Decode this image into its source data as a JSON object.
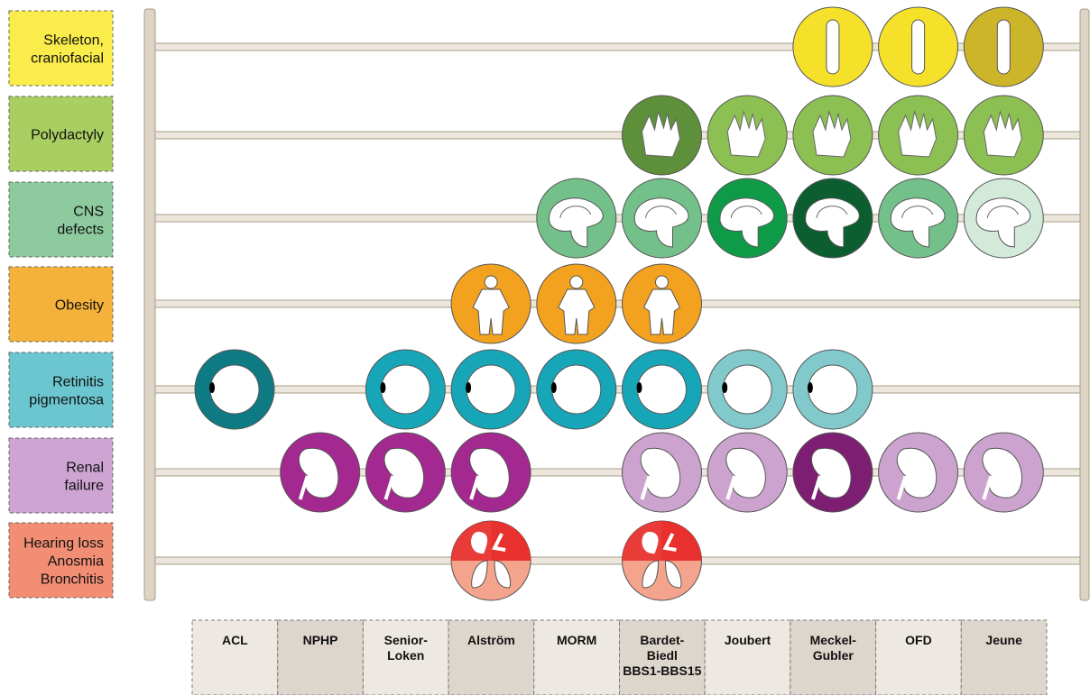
{
  "rows": [
    {
      "label": [
        "Skeleton,",
        "craniofacial"
      ],
      "color": "#f9ec4b",
      "beads": [
        null,
        null,
        null,
        null,
        null,
        null,
        null,
        "#f5e12a",
        "#f5e12a",
        "#cdb52a"
      ]
    },
    {
      "label": [
        "Polydactyly"
      ],
      "color": "#a9cf62",
      "beads": [
        null,
        null,
        null,
        null,
        null,
        "#5e8f3a",
        "#8dc053",
        "#8dc053",
        "#8dc053",
        "#8dc053"
      ]
    },
    {
      "label": [
        "CNS",
        "defects"
      ],
      "color": "#8dcb9e",
      "beads": [
        null,
        null,
        null,
        null,
        "#74c08a",
        "#74c08a",
        "#0f9a48",
        "#0c5e30",
        "#74c08a",
        "#d3eadb"
      ]
    },
    {
      "label": [
        "Obesity"
      ],
      "color": "#f5b23a",
      "beads": [
        null,
        null,
        null,
        "#f2a21e",
        "#f2a21e",
        "#f2a21e",
        null,
        null,
        null,
        null
      ]
    },
    {
      "label": [
        "Retinitis",
        "pigmentosa"
      ],
      "color": "#6cc6cf",
      "beads": [
        "#0e7b84",
        null,
        "#16a6b8",
        "#16a6b8",
        "#16a6b8",
        "#16a6b8",
        "#82c9cc",
        "#82c9cc",
        null,
        null
      ]
    },
    {
      "label": [
        "Renal",
        "failure"
      ],
      "color": "#cda4d2",
      "beads": [
        null,
        "#a3288f",
        "#a3288f",
        "#a3288f",
        null,
        "#cca3cf",
        "#cca3cf",
        "#7d1e72",
        "#cca3cf",
        "#cca3cf"
      ]
    },
    {
      "label": [
        "Hearing loss",
        "Anosmia",
        "Bronchitis"
      ],
      "color": "#f18e73",
      "beads": [
        null,
        null,
        null,
        "#f4a38c",
        null,
        "#f4a38c",
        null,
        null,
        null,
        null
      ]
    }
  ],
  "columns": [
    [
      "ACL"
    ],
    [
      "NPHP"
    ],
    [
      "Senior-",
      "Loken"
    ],
    [
      "Alström"
    ],
    [
      "MORM"
    ],
    [
      "Bardet-",
      "Biedl",
      "BBS1-BBS15"
    ],
    [
      "Joubert"
    ],
    [
      "Meckel-",
      "Gubler"
    ],
    [
      "OFD"
    ],
    [
      "Jeune"
    ]
  ]
}
